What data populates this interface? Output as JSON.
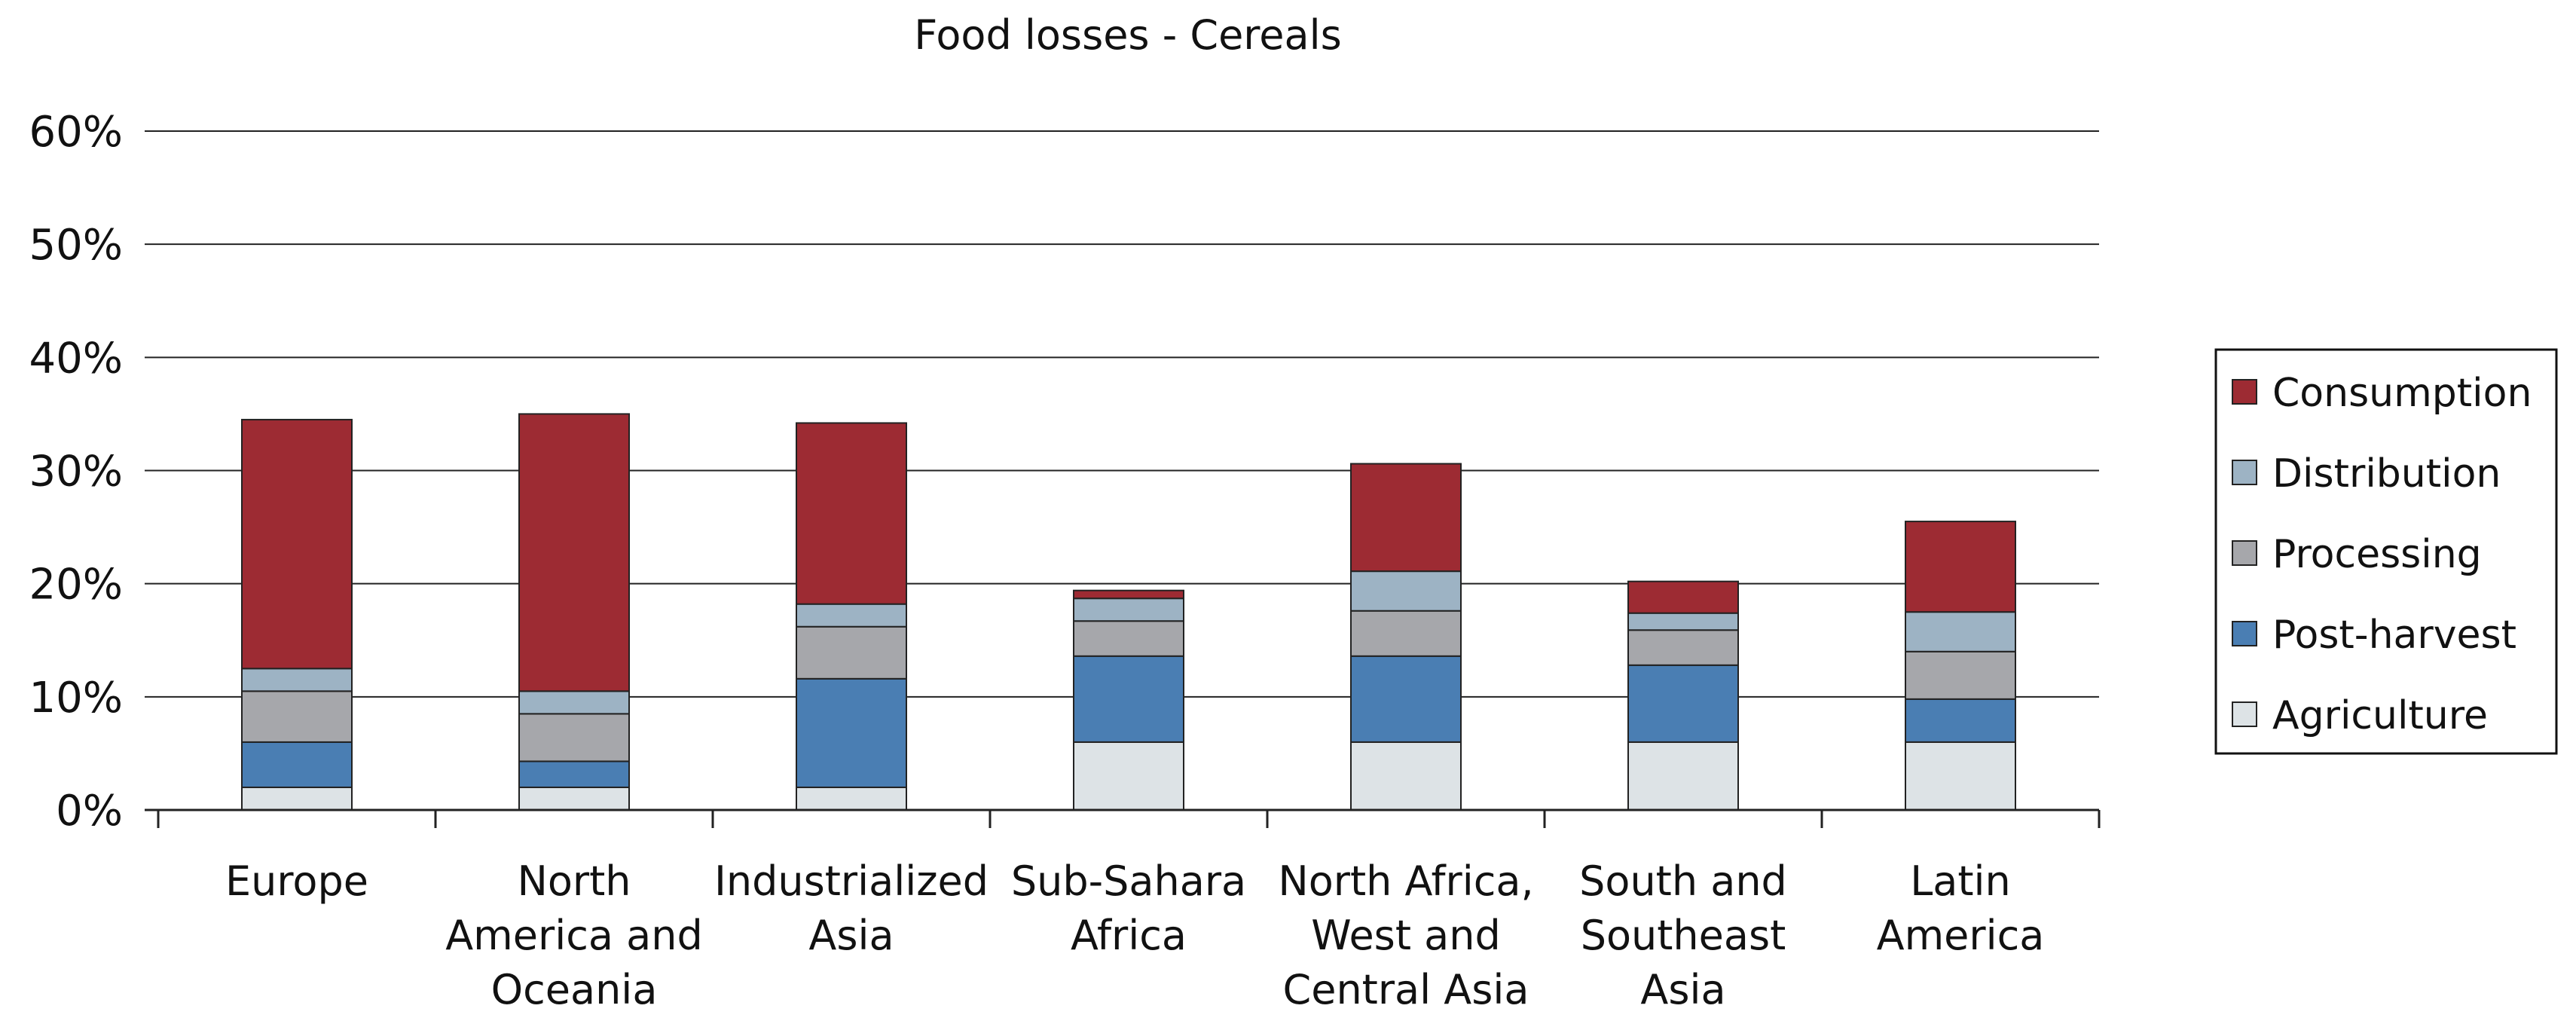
{
  "chart_data": {
    "type": "bar",
    "stacked": true,
    "title": "Food losses - Cereals",
    "xlabel": "",
    "ylabel": "",
    "ylim": [
      0,
      60
    ],
    "yticks": [
      "0%",
      "10%",
      "20%",
      "30%",
      "40%",
      "50%",
      "60%"
    ],
    "grid": true,
    "legend_position": "right",
    "categories": [
      [
        "Europe"
      ],
      [
        "North",
        "America and",
        "Oceania"
      ],
      [
        "Industrialized",
        "Asia"
      ],
      [
        "Sub-Sahara",
        "Africa"
      ],
      [
        "North Africa,",
        "West and",
        "Central Asia"
      ],
      [
        "South and",
        "Southeast",
        "Asia"
      ],
      [
        "Latin",
        "America"
      ]
    ],
    "series": [
      {
        "name": "Agriculture",
        "color": "#dde3e6",
        "values": [
          2,
          2,
          2,
          6,
          6,
          6,
          6
        ]
      },
      {
        "name": "Post-harvest",
        "color": "#4a7eb3",
        "values": [
          4,
          2.3,
          9.6,
          7.6,
          7.6,
          6.8,
          3.8
        ]
      },
      {
        "name": "Processing",
        "color": "#a6a7ab",
        "values": [
          4.5,
          4.2,
          4.6,
          3.1,
          4,
          3.1,
          4.2
        ]
      },
      {
        "name": "Distribution",
        "color": "#9db3c4",
        "values": [
          2,
          2,
          2,
          2,
          3.5,
          1.5,
          3.5
        ]
      },
      {
        "name": "Consumption",
        "color": "#9d2b33",
        "values": [
          22,
          24.5,
          16,
          0.7,
          9.5,
          2.8,
          8
        ]
      }
    ]
  }
}
